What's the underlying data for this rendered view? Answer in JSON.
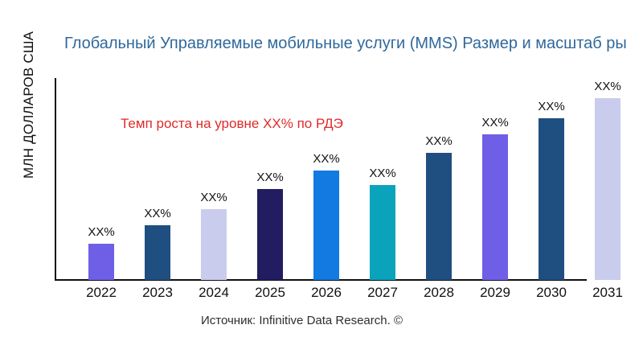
{
  "title": "Глобальный Управляемые мобильные услуги (MMS) Размер и масштаб ры",
  "y_axis_label": "МЛН ДОЛЛАРОВ США",
  "annotation": "Темп роста на уровне XX% по РДЭ",
  "source": "Источник: Infinitive Data Research. ©",
  "colors": {
    "title_text": "#30689c",
    "annotation_text": "#e02a2a",
    "axis_line": "#111111",
    "label_text": "#111111",
    "background": "#ffffff"
  },
  "chart_data": {
    "type": "bar",
    "title": "Глобальный Управляемые мобильные услуги (MMS) Размер и масштаб ры",
    "xlabel": "",
    "ylabel": "МЛН ДОЛЛАРОВ США",
    "categories": [
      "2022",
      "2023",
      "2024",
      "2025",
      "2026",
      "2027",
      "2028",
      "2029",
      "2030",
      "2031"
    ],
    "values": [
      20,
      30,
      39,
      50,
      60,
      52,
      70,
      80,
      89,
      100
    ],
    "value_unit": "relative, % of tallest bar (numeric values not shown in chart)",
    "bar_labels": [
      "XX%",
      "XX%",
      "XX%",
      "XX%",
      "XX%",
      "XX%",
      "XX%",
      "XX%",
      "XX%",
      "XX%"
    ],
    "bar_colors": [
      "#6e5fe6",
      "#1f4f80",
      "#c9cced",
      "#221c60",
      "#127ae0",
      "#0aa3bb",
      "#1f4f80",
      "#6e5fe6",
      "#1f4f80",
      "#c9cced"
    ],
    "annotation": "Темп роста на уровне XX% по РДЭ",
    "source": "Источник: Infinitive Data Research. ©",
    "ylim": [
      0,
      100
    ],
    "grid": false,
    "legend": "none"
  }
}
